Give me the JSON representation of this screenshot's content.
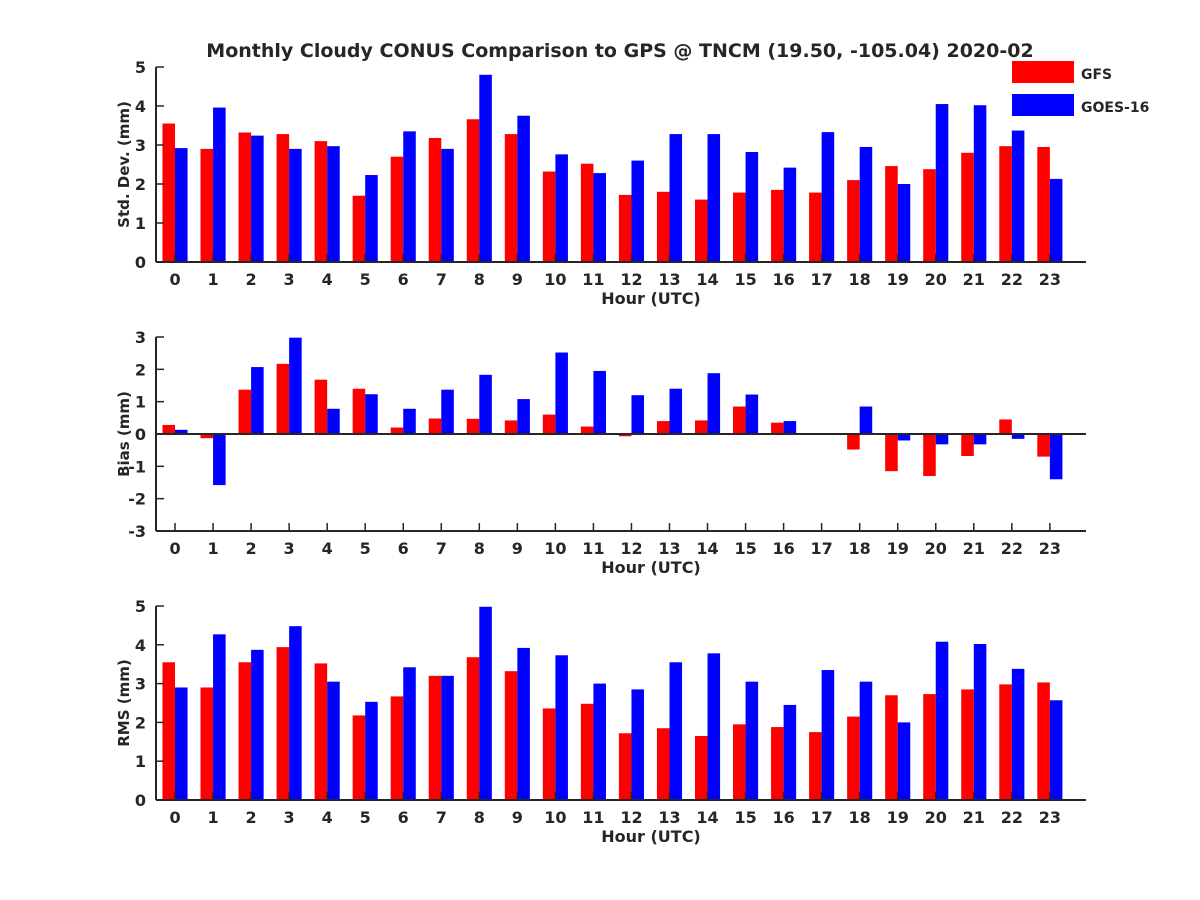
{
  "title": "Monthly Cloudy CONUS Comparison to GPS @ TNCM (19.50, -105.04) 2020-02",
  "legend": {
    "placement": "top-right",
    "entries": [
      {
        "label": "GFS",
        "color": "#ff0000"
      },
      {
        "label": "GOES-16",
        "color": "#0000ff"
      }
    ]
  },
  "chart_data": [
    {
      "type": "bar",
      "xlabel": "Hour (UTC)",
      "ylabel": "Std. Dev. (mm)",
      "ylim": [
        0,
        5
      ],
      "yticks": [
        0,
        1,
        2,
        3,
        4,
        5
      ],
      "categories": [
        "0",
        "1",
        "2",
        "3",
        "4",
        "5",
        "6",
        "7",
        "8",
        "9",
        "10",
        "11",
        "12",
        "13",
        "14",
        "15",
        "16",
        "17",
        "18",
        "19",
        "20",
        "21",
        "22",
        "23"
      ],
      "series": [
        {
          "name": "GFS",
          "color": "#ff0000",
          "values": [
            3.55,
            2.9,
            3.32,
            3.28,
            3.1,
            1.7,
            2.7,
            3.18,
            3.66,
            3.28,
            2.32,
            2.52,
            1.72,
            1.8,
            1.6,
            1.78,
            1.85,
            1.78,
            2.1,
            2.46,
            2.38,
            2.8,
            2.97,
            2.95
          ]
        },
        {
          "name": "GOES-16",
          "color": "#0000ff",
          "values": [
            2.92,
            3.96,
            3.24,
            2.9,
            2.97,
            2.23,
            3.35,
            2.9,
            4.8,
            3.75,
            2.76,
            2.28,
            2.6,
            3.28,
            3.28,
            2.82,
            2.42,
            3.33,
            2.95,
            2.0,
            4.05,
            4.02,
            3.37,
            2.13
          ]
        }
      ]
    },
    {
      "type": "bar",
      "xlabel": "Hour (UTC)",
      "ylabel": "Bias (mm)",
      "ylim": [
        -3,
        3
      ],
      "yticks": [
        -3,
        -2,
        -1,
        0,
        1,
        2,
        3
      ],
      "categories": [
        "0",
        "1",
        "2",
        "3",
        "4",
        "5",
        "6",
        "7",
        "8",
        "9",
        "10",
        "11",
        "12",
        "13",
        "14",
        "15",
        "16",
        "17",
        "18",
        "19",
        "20",
        "21",
        "22",
        "23"
      ],
      "series": [
        {
          "name": "GFS",
          "color": "#ff0000",
          "values": [
            0.28,
            -0.13,
            1.37,
            2.17,
            1.68,
            1.4,
            0.2,
            0.48,
            0.47,
            0.42,
            0.6,
            0.23,
            -0.07,
            0.4,
            0.42,
            0.85,
            0.35,
            0.0,
            -0.48,
            -1.15,
            -1.3,
            -0.68,
            0.45,
            -0.7
          ]
        },
        {
          "name": "GOES-16",
          "color": "#0000ff",
          "values": [
            0.13,
            -1.58,
            2.07,
            2.98,
            0.78,
            1.23,
            0.78,
            1.37,
            1.83,
            1.08,
            2.52,
            1.95,
            1.2,
            1.4,
            1.88,
            1.22,
            0.4,
            0.0,
            0.85,
            -0.2,
            -0.32,
            -0.32,
            -0.15,
            -1.4
          ]
        }
      ]
    },
    {
      "type": "bar",
      "xlabel": "Hour (UTC)",
      "ylabel": "RMS (mm)",
      "ylim": [
        0,
        5
      ],
      "yticks": [
        0,
        1,
        2,
        3,
        4,
        5
      ],
      "categories": [
        "0",
        "1",
        "2",
        "3",
        "4",
        "5",
        "6",
        "7",
        "8",
        "9",
        "10",
        "11",
        "12",
        "13",
        "14",
        "15",
        "16",
        "17",
        "18",
        "19",
        "20",
        "21",
        "22",
        "23"
      ],
      "series": [
        {
          "name": "GFS",
          "color": "#ff0000",
          "values": [
            3.55,
            2.9,
            3.55,
            3.94,
            3.52,
            2.18,
            2.67,
            3.2,
            3.68,
            3.32,
            2.36,
            2.48,
            1.72,
            1.85,
            1.65,
            1.95,
            1.88,
            1.75,
            2.15,
            2.7,
            2.73,
            2.85,
            2.98,
            3.03
          ]
        },
        {
          "name": "GOES-16",
          "color": "#0000ff",
          "values": [
            2.9,
            4.27,
            3.87,
            4.48,
            3.05,
            2.53,
            3.42,
            3.2,
            4.98,
            3.92,
            3.73,
            3.0,
            2.85,
            3.55,
            3.78,
            3.05,
            2.45,
            3.35,
            3.05,
            2.0,
            4.08,
            4.02,
            3.38,
            2.57
          ]
        }
      ]
    }
  ]
}
